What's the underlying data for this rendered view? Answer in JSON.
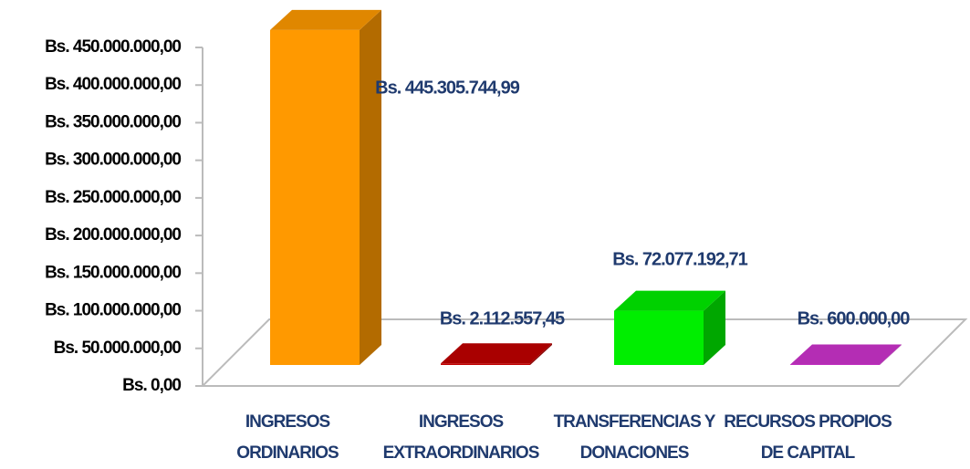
{
  "chart_data": {
    "type": "bar3d",
    "categories": [
      "INGRESOS ORDINARIOS",
      "INGRESOS EXTRAORDINARIOS",
      "TRANSFERENCIAS Y DONACIONES",
      "RECURSOS PROPIOS DE CAPITAL"
    ],
    "values": [
      445305744.99,
      2112557.45,
      72077192.71,
      600000
    ],
    "value_labels": [
      "Bs. 445.305.744,99",
      "Bs. 2.112.557,45",
      "Bs. 72.077.192,71",
      "Bs. 600.000,00"
    ],
    "colors": [
      "#ff9900",
      "#c00000",
      "#00ee00",
      "#cc33cc"
    ],
    "ylim": [
      0,
      450000000
    ],
    "yticks": [
      {
        "value": 0,
        "label": "Bs. 0,00"
      },
      {
        "value": 50000000,
        "label": "Bs. 50.000.000,00"
      },
      {
        "value": 100000000,
        "label": "Bs. 100.000.000,00"
      },
      {
        "value": 150000000,
        "label": "Bs. 150.000.000,00"
      },
      {
        "value": 200000000,
        "label": "Bs. 200.000.000,00"
      },
      {
        "value": 250000000,
        "label": "Bs. 250.000.000,00"
      },
      {
        "value": 300000000,
        "label": "Bs. 300.000.000,00"
      },
      {
        "value": 350000000,
        "label": "Bs. 350.000.000,00"
      },
      {
        "value": 400000000,
        "label": "Bs. 400.000.000,00"
      },
      {
        "value": 450000000,
        "label": "Bs. 450.000.000,00"
      }
    ]
  }
}
